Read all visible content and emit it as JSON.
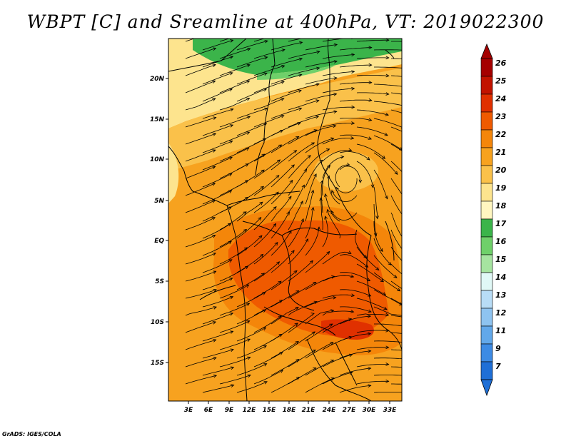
{
  "title": "WBPT [C] and Sreamline at 400hPa, VT: 2019022300",
  "credit": "GrADS: IGES/COLA",
  "map": {
    "lat_labels": [
      "20N",
      "15N",
      "10N",
      "5N",
      "EQ",
      "5S",
      "10S",
      "15S"
    ],
    "lon_labels": [
      "3E",
      "6E",
      "9E",
      "12E",
      "15E",
      "18E",
      "21E",
      "24E",
      "27E",
      "30E",
      "33E"
    ]
  },
  "colorbar": {
    "labels": [
      "26",
      "25",
      "24",
      "23",
      "22",
      "21",
      "20",
      "19",
      "18",
      "17",
      "16",
      "15",
      "14",
      "13",
      "12",
      "11",
      "9",
      "7"
    ],
    "colors": [
      "#a50000",
      "#c21300",
      "#e03000",
      "#ef5a00",
      "#f4860a",
      "#f7a21f",
      "#fac14a",
      "#fde48e",
      "#fff6c0",
      "#3bb44a",
      "#6fd06a",
      "#a6e4a0",
      "#e0f8f6",
      "#b8dcf6",
      "#8ec3f0",
      "#62a8ea",
      "#3d8be4",
      "#1f6fd6"
    ]
  }
}
